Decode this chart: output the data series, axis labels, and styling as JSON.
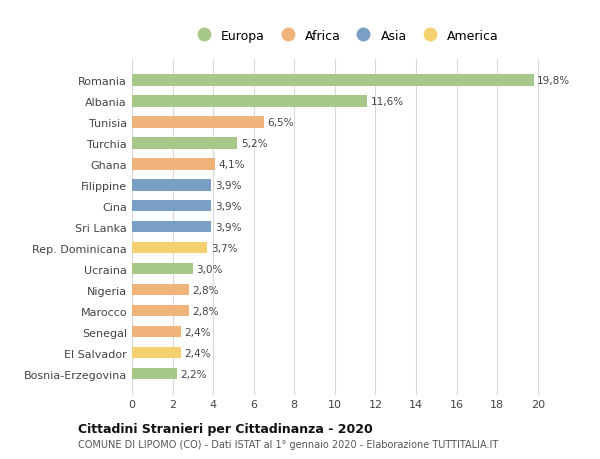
{
  "categories": [
    "Romania",
    "Albania",
    "Tunisia",
    "Turchia",
    "Ghana",
    "Filippine",
    "Cina",
    "Sri Lanka",
    "Rep. Dominicana",
    "Ucraina",
    "Nigeria",
    "Marocco",
    "Senegal",
    "El Salvador",
    "Bosnia-Erzegovina"
  ],
  "values": [
    19.8,
    11.6,
    6.5,
    5.2,
    4.1,
    3.9,
    3.9,
    3.9,
    3.7,
    3.0,
    2.8,
    2.8,
    2.4,
    2.4,
    2.2
  ],
  "labels": [
    "19,8%",
    "11,6%",
    "6,5%",
    "5,2%",
    "4,1%",
    "3,9%",
    "3,9%",
    "3,9%",
    "3,7%",
    "3,0%",
    "2,8%",
    "2,8%",
    "2,4%",
    "2,4%",
    "2,2%"
  ],
  "continent": [
    "Europa",
    "Europa",
    "Africa",
    "Europa",
    "Africa",
    "Asia",
    "Asia",
    "Asia",
    "America",
    "Europa",
    "Africa",
    "Africa",
    "Africa",
    "America",
    "Europa"
  ],
  "colors": {
    "Europa": "#a8c88a",
    "Africa": "#f0b47a",
    "Asia": "#7a9fc4",
    "America": "#f5d070"
  },
  "legend_order": [
    "Europa",
    "Africa",
    "Asia",
    "America"
  ],
  "title": "Cittadini Stranieri per Cittadinanza - 2020",
  "subtitle": "COMUNE DI LIPOMO (CO) - Dati ISTAT al 1° gennaio 2020 - Elaborazione TUTTITALIA.IT",
  "xlim": [
    0,
    21
  ],
  "xticks": [
    0,
    2,
    4,
    6,
    8,
    10,
    12,
    14,
    16,
    18,
    20
  ],
  "background_color": "#ffffff",
  "grid_color": "#d8d8d8"
}
